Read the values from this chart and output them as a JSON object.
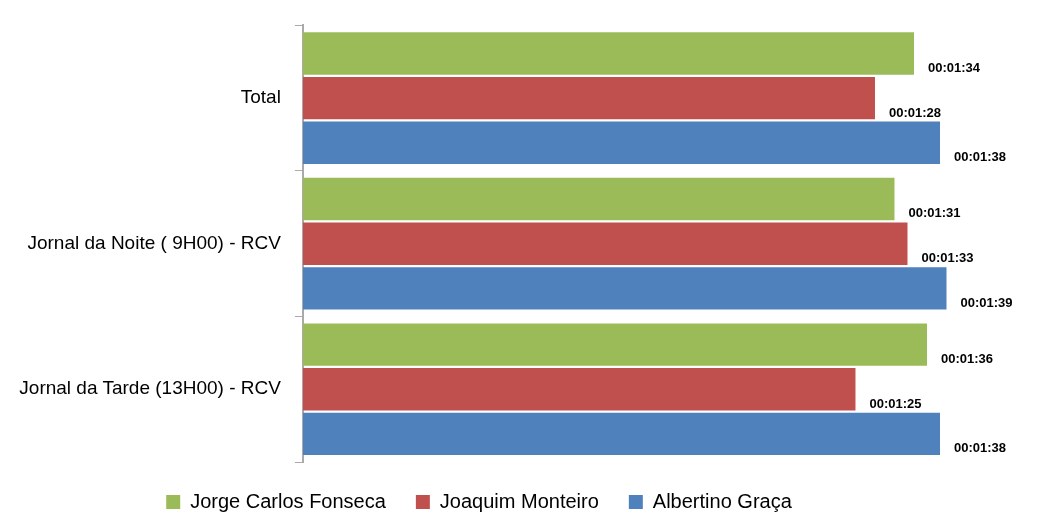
{
  "chart_data": {
    "type": "bar",
    "orientation": "horizontal",
    "categories": [
      "Total",
      "Jornal da Noite ( 9H00) - RCV",
      "Jornal da Tarde (13H00) - RCV"
    ],
    "series": [
      {
        "name": "Jorge Carlos Fonseca",
        "color": "#9bbb59",
        "values": [
          94,
          91,
          96
        ],
        "value_labels": [
          "00:01:34",
          "00:01:31",
          "00:01:36"
        ]
      },
      {
        "name": "Joaquim Monteiro",
        "color": "#c0504d",
        "values": [
          88,
          93,
          85
        ],
        "value_labels": [
          "00:01:28",
          "00:01:33",
          "00:01:25"
        ]
      },
      {
        "name": "Albertino Graça",
        "color": "#4f81bd",
        "values": [
          98,
          99,
          98
        ],
        "value_labels": [
          "00:01:38",
          "00:01:39",
          "00:01:38"
        ]
      }
    ],
    "tick_labels": "y",
    "legend": "bottom"
  }
}
